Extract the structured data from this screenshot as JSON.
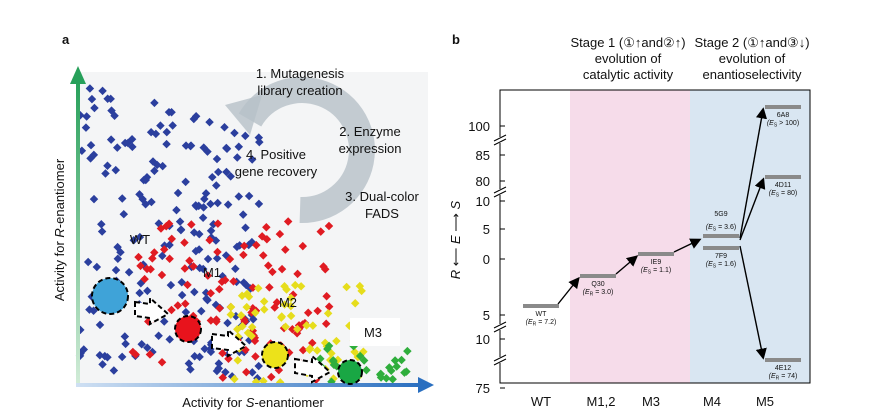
{
  "panel_a": {
    "label": "a",
    "steps": [
      [
        "1. Mutagenesis",
        "library creation"
      ],
      [
        "2. Enzyme",
        "expression"
      ],
      [
        "3. Dual-color",
        "FADS"
      ],
      [
        "4. Positive",
        "gene recovery"
      ]
    ],
    "groups": [
      "WT",
      "M1",
      "M2",
      "M3"
    ],
    "y_axis": {
      "pre": "Activity for ",
      "it": "R",
      "post": "-enantiomer"
    },
    "x_axis": {
      "pre": "Activity for ",
      "it": "S",
      "post": "-enantiomer"
    }
  },
  "panel_b": {
    "label": "b",
    "stages": [
      [
        "Stage 1 (①↑and②↑)",
        "evolution of",
        "catalytic activity"
      ],
      [
        "Stage 2 (①↑and③↓)",
        "evolution of",
        "enantioselectivity"
      ]
    ],
    "y_axis": {
      "r": "R",
      "e": "E",
      "s": "S"
    },
    "ticks": [
      "100",
      "85",
      "80",
      "10",
      "5",
      "0",
      "5",
      "10",
      "75"
    ],
    "columns": [
      "WT",
      "M1,2",
      "M3",
      "M4",
      "M5"
    ],
    "levels": [
      {
        "name": "WT",
        "pre": "(E",
        "sub": "R",
        "post": " = 7.2)"
      },
      {
        "name": "Q30",
        "pre": "(E",
        "sub": "R",
        "post": " = 3.0)"
      },
      {
        "name": "IE9",
        "pre": "(E",
        "sub": "S",
        "post": " = 1.1)"
      },
      {
        "name": "5G9",
        "pre": "(E",
        "sub": "S",
        "post": " = 3.6)"
      },
      {
        "name": "7F9",
        "pre": "(E",
        "sub": "S",
        "post": " = 1.6)"
      },
      {
        "name": "6A8",
        "pre": "(E",
        "sub": "S",
        "post": " > 100)"
      },
      {
        "name": "4D11",
        "pre": "(E",
        "sub": "S",
        "post": " = 80)"
      },
      {
        "name": "4E12",
        "pre": "(E",
        "sub": "R",
        "post": " = 74)"
      }
    ]
  }
}
